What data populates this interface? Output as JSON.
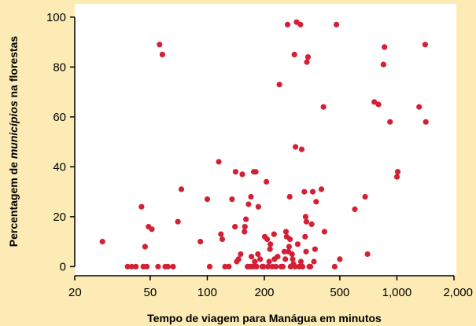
{
  "chart_data": {
    "type": "scatter",
    "x_scale": "log",
    "xlim": [
      20,
      2000
    ],
    "ylim": [
      -5,
      100
    ],
    "x_ticks": [
      20,
      50,
      100,
      200,
      500,
      1000,
      2000
    ],
    "x_tick_labels": [
      "20",
      "50",
      "100",
      "200",
      "500",
      "1,000",
      "2,000"
    ],
    "y_ticks": [
      0,
      20,
      40,
      60,
      80,
      100
    ],
    "y_tick_labels": [
      "0",
      "20",
      "40",
      "60",
      "80",
      "100"
    ],
    "xlabel": "Tempo de viagem para Manágua em minutos",
    "ylabel_prefix": "Percentagem de ",
    "ylabel_italic": "municípios",
    "ylabel_suffix": " na florestas",
    "grid": false,
    "colors": {
      "background": "#fcebb4",
      "plot_area": "#ffffff",
      "point": "#d42035",
      "axis": "#000000"
    },
    "series": [
      {
        "points": [
          [
            28,
            10
          ],
          [
            38,
            0
          ],
          [
            40,
            0
          ],
          [
            42,
            0
          ],
          [
            45,
            24
          ],
          [
            46,
            0
          ],
          [
            47,
            8
          ],
          [
            48,
            0
          ],
          [
            49,
            16
          ],
          [
            51,
            15
          ],
          [
            55,
            0
          ],
          [
            56,
            89
          ],
          [
            58,
            85
          ],
          [
            60,
            0
          ],
          [
            62,
            0
          ],
          [
            66,
            0
          ],
          [
            70,
            18
          ],
          [
            73,
            31
          ],
          [
            92,
            10
          ],
          [
            100,
            27
          ],
          [
            103,
            0
          ],
          [
            115,
            42
          ],
          [
            118,
            13
          ],
          [
            120,
            11
          ],
          [
            124,
            0
          ],
          [
            130,
            0
          ],
          [
            135,
            27
          ],
          [
            140,
            16
          ],
          [
            141,
            38
          ],
          [
            143,
            2
          ],
          [
            146,
            3
          ],
          [
            150,
            5
          ],
          [
            153,
            37
          ],
          [
            157,
            14
          ],
          [
            158,
            16
          ],
          [
            160,
            19
          ],
          [
            163,
            0
          ],
          [
            165,
            25
          ],
          [
            168,
            0
          ],
          [
            170,
            28
          ],
          [
            171,
            4
          ],
          [
            172,
            0
          ],
          [
            175,
            0
          ],
          [
            176,
            38
          ],
          [
            178,
            2
          ],
          [
            180,
            38
          ],
          [
            182,
            0
          ],
          [
            185,
            5
          ],
          [
            186,
            24
          ],
          [
            190,
            3
          ],
          [
            195,
            0
          ],
          [
            198,
            0
          ],
          [
            201,
            12
          ],
          [
            205,
            34
          ],
          [
            207,
            11
          ],
          [
            209,
            0
          ],
          [
            212,
            2
          ],
          [
            214,
            7
          ],
          [
            215,
            9
          ],
          [
            220,
            0
          ],
          [
            225,
            13
          ],
          [
            226,
            3
          ],
          [
            230,
            0
          ],
          [
            235,
            4
          ],
          [
            240,
            73
          ],
          [
            245,
            0
          ],
          [
            250,
            0
          ],
          [
            255,
            6
          ],
          [
            258,
            3
          ],
          [
            260,
            14
          ],
          [
            262,
            12
          ],
          [
            265,
            97
          ],
          [
            268,
            6
          ],
          [
            270,
            8
          ],
          [
            272,
            28
          ],
          [
            273,
            11
          ],
          [
            275,
            0
          ],
          [
            280,
            5
          ],
          [
            282,
            3
          ],
          [
            285,
            1
          ],
          [
            288,
            85
          ],
          [
            290,
            0
          ],
          [
            292,
            48
          ],
          [
            296,
            98
          ],
          [
            300,
            9
          ],
          [
            305,
            0
          ],
          [
            310,
            97
          ],
          [
            312,
            2
          ],
          [
            315,
            47
          ],
          [
            318,
            0
          ],
          [
            325,
            30
          ],
          [
            328,
            12
          ],
          [
            330,
            20
          ],
          [
            332,
            6
          ],
          [
            333,
            18
          ],
          [
            335,
            82
          ],
          [
            340,
            84
          ],
          [
            345,
            0
          ],
          [
            350,
            0
          ],
          [
            355,
            17
          ],
          [
            360,
            30
          ],
          [
            365,
            2
          ],
          [
            370,
            7
          ],
          [
            375,
            26
          ],
          [
            400,
            31
          ],
          [
            410,
            64
          ],
          [
            415,
            14
          ],
          [
            470,
            0
          ],
          [
            480,
            97
          ],
          [
            500,
            3
          ],
          [
            600,
            23
          ],
          [
            680,
            28
          ],
          [
            700,
            5
          ],
          [
            760,
            66
          ],
          [
            800,
            65
          ],
          [
            850,
            81
          ],
          [
            860,
            88
          ],
          [
            920,
            58
          ],
          [
            1000,
            36
          ],
          [
            1010,
            38
          ],
          [
            1310,
            64
          ],
          [
            1410,
            89
          ],
          [
            1420,
            58
          ]
        ]
      }
    ]
  }
}
